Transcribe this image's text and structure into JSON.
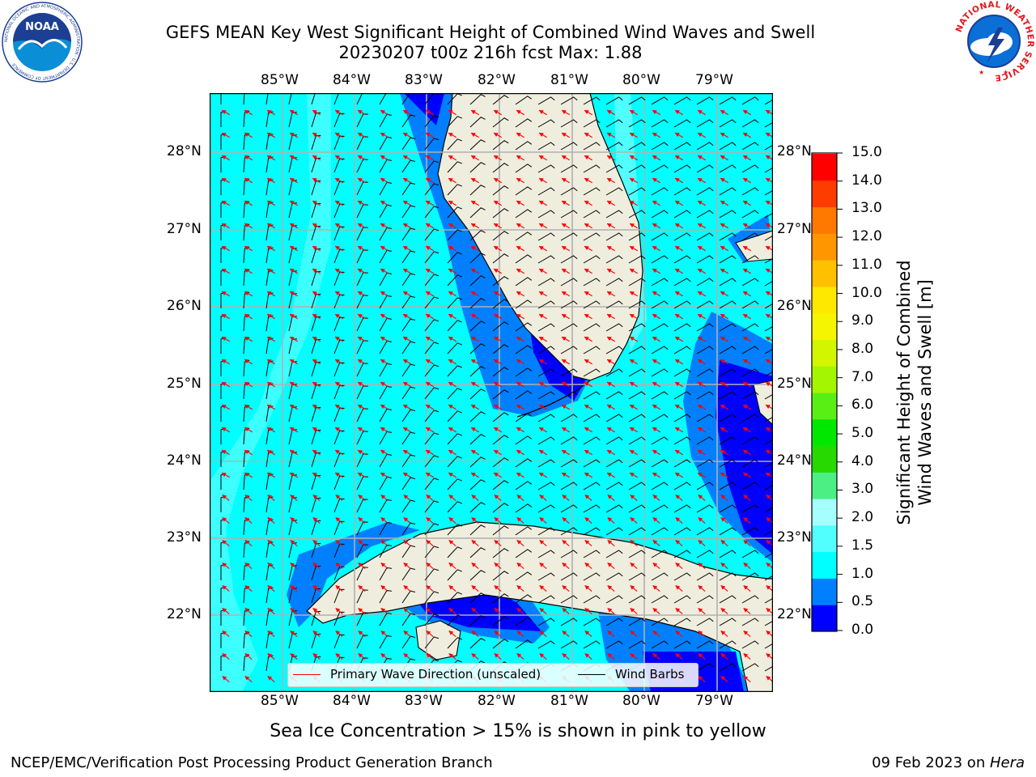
{
  "title": {
    "line1": "GEFS MEAN Key West Significant Height of Combined Wind Waves and Swell",
    "line2": "20230207 t00z 216h fcst   Max: 1.88"
  },
  "map": {
    "lon_ticks": [
      "85°W",
      "84°W",
      "83°W",
      "82°W",
      "81°W",
      "80°W",
      "79°W"
    ],
    "lat_ticks": [
      "28°N",
      "27°N",
      "26°N",
      "25°N",
      "24°N",
      "23°N",
      "22°N"
    ],
    "colors": {
      "land": "#efedde",
      "sea_primary": "#00ffff",
      "sea_light": "#51ffff",
      "wave_low": "#0080ff",
      "wave_calm": "#0000ff",
      "coast": "#000000",
      "grid": "#b0b0b0",
      "wave_arrow": "#ff0000",
      "wind_barb": "#000000"
    }
  },
  "legend": {
    "wave_direction": "Primary Wave Direction (unscaled)",
    "wind_barbs": "Wind Barbs"
  },
  "colorbar": {
    "label_line1": "Significant Height of Combined",
    "label_line2": "Wind Waves and Swell [m]",
    "ticks": [
      "15.0",
      "14.0",
      "13.0",
      "12.0",
      "11.0",
      "10.0",
      "9.0",
      "8.0",
      "7.0",
      "6.0",
      "5.0",
      "4.0",
      "3.0",
      "2.0",
      "1.5",
      "1.0",
      "0.5",
      "0.0"
    ],
    "colors": [
      "#0000ff",
      "#0080ff",
      "#00ffff",
      "#51ffff",
      "#a6ffff",
      "#4bf085",
      "#28d900",
      "#00e800",
      "#5aef14",
      "#a4f500",
      "#d2f500",
      "#f5f500",
      "#ffe800",
      "#ffc000",
      "#ff9600",
      "#ff7800",
      "#ff3c00",
      "#ff0000"
    ]
  },
  "note": "Sea Ice Concentration > 15% is shown in pink to yellow",
  "footer": {
    "left": "NCEP/EMC/Verification Post Processing Product Generation Branch",
    "right_prefix": "09 Feb 2023 on ",
    "right_host": "Hera"
  },
  "logos": {
    "noaa_text": "NOAA",
    "noaa_ring": "NATIONAL OCEANIC AND ATMOSPHERIC ADMINISTRATION · U.S. DEPARTMENT OF COMMERCE",
    "nws_ring": "NATIONAL WEATHER SERVICE"
  }
}
